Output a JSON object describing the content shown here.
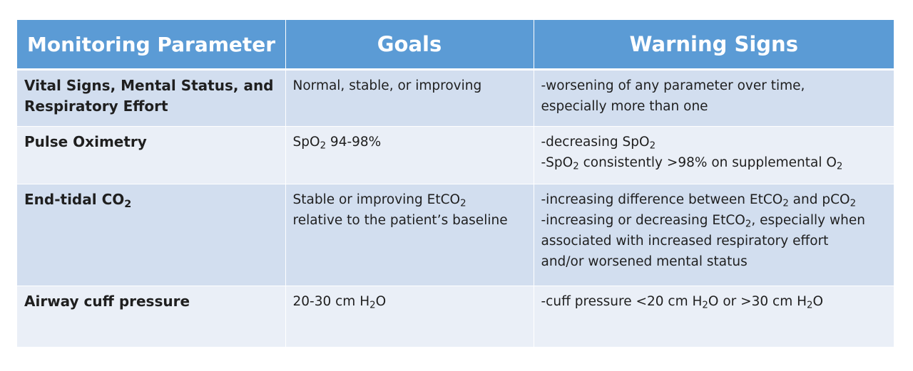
{
  "table": {
    "headers": [
      "Monitoring Parameter",
      "Goals",
      "Warning Signs"
    ],
    "rows": [
      {
        "parameter": [
          "Vital Signs, Mental Status, and",
          "Respiratory Effort"
        ],
        "goals": [
          "Normal, stable, or improving"
        ],
        "warnings": [
          "-worsening of any parameter over time,",
          "especially more than one"
        ]
      },
      {
        "parameter": [
          "Pulse Oximetry"
        ],
        "goals": [
          "SpO|2| 94-98%"
        ],
        "warnings": [
          "-decreasing SpO|2|",
          "-SpO|2| consistently >98% on supplemental O|2|"
        ]
      },
      {
        "parameter": [
          "End-tidal CO|2|"
        ],
        "goals": [
          "Stable or improving EtCO|2|",
          "relative to the patient’s baseline"
        ],
        "warnings": [
          "-increasing difference between EtCO|2| and pCO|2|",
          "-increasing or decreasing EtCO|2|, especially when",
          "associated with increased respiratory effort",
          "and/or worsened mental status"
        ]
      },
      {
        "parameter": [
          "Airway cuff pressure"
        ],
        "goals": [
          "20-30 cm H|2|O"
        ],
        "warnings": [
          "-cuff pressure <20 cm H|2|O or >30 cm H|2|O"
        ]
      }
    ]
  }
}
